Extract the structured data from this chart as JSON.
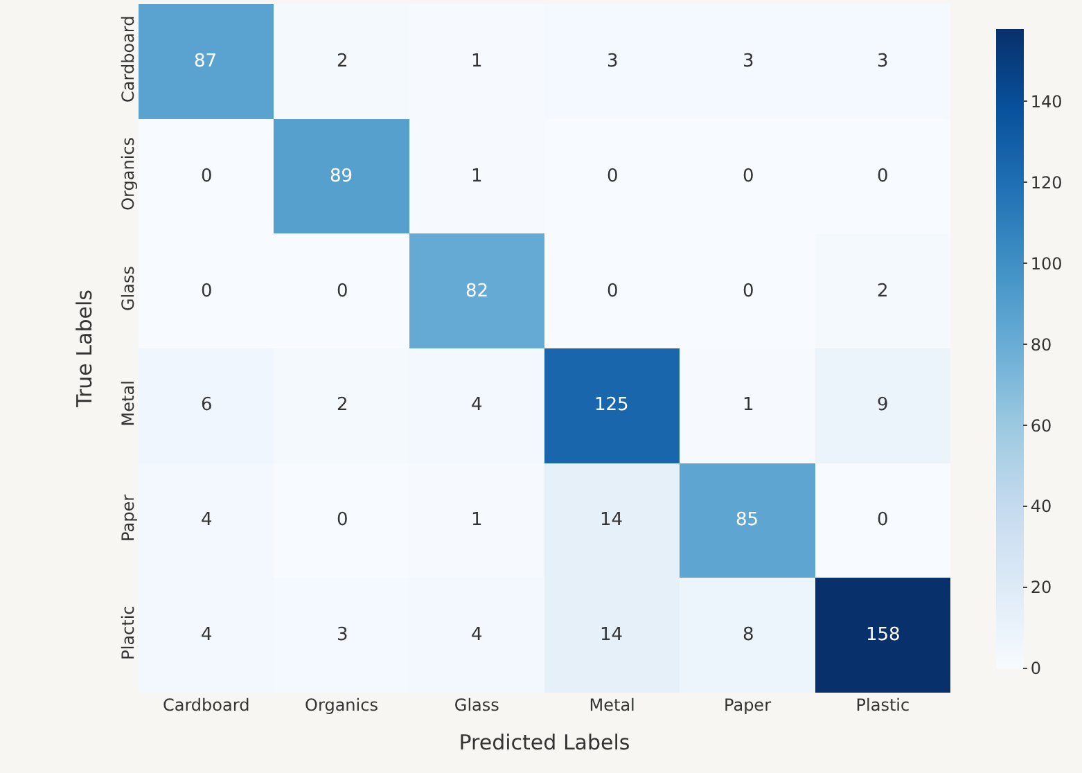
{
  "chart_data": {
    "type": "heatmap",
    "xlabel": "Predicted Labels",
    "ylabel": "True Labels",
    "categories": [
      "Cardboard",
      "Organics",
      "Glass",
      "Metal",
      "Paper",
      "Plastic"
    ],
    "y_categories": [
      "Cardboard",
      "Organics",
      "Glass",
      "Metal",
      "Paper",
      "Plactic"
    ],
    "cells": [
      [
        87,
        2,
        1,
        3,
        3,
        3
      ],
      [
        0,
        89,
        1,
        0,
        0,
        0
      ],
      [
        0,
        0,
        82,
        0,
        0,
        2
      ],
      [
        6,
        2,
        4,
        125,
        1,
        9
      ],
      [
        4,
        0,
        1,
        14,
        85,
        0
      ],
      [
        4,
        3,
        4,
        14,
        8,
        158
      ]
    ],
    "clim": [
      0,
      158
    ],
    "cticks": [
      0,
      20,
      40,
      60,
      80,
      100,
      120,
      140
    ],
    "data_labels": true
  }
}
